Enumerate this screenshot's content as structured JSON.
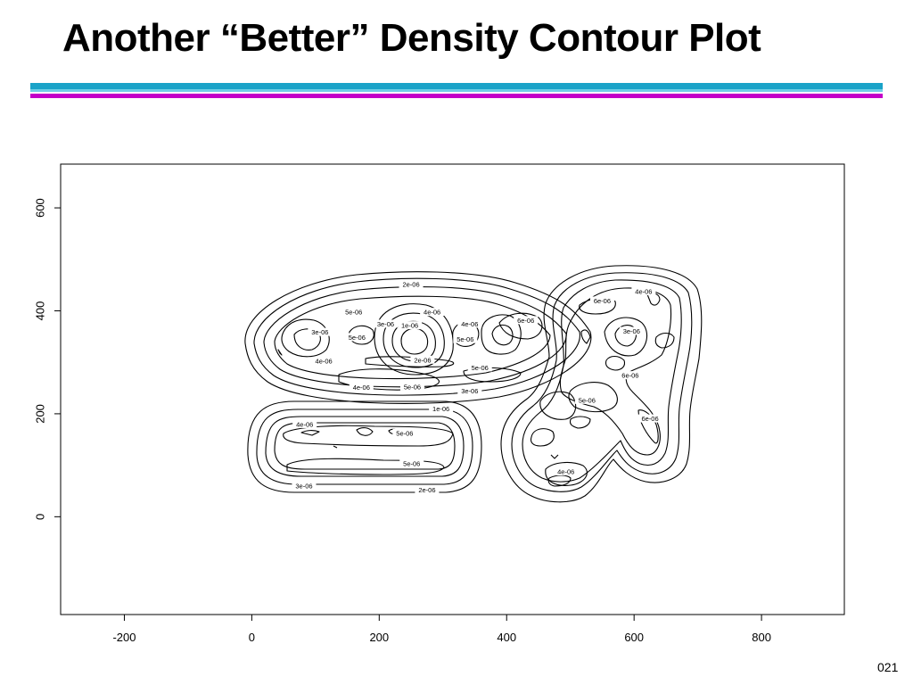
{
  "slide": {
    "title": "Another “Better” Density Contour Plot",
    "page_number": "021",
    "rule_colors": [
      "#1aa3c8",
      "#6fd0e6",
      "#c400c8"
    ]
  },
  "chart_data": {
    "type": "contour",
    "title": "",
    "xlabel": "",
    "ylabel": "",
    "xlim": [
      -300,
      930
    ],
    "ylim": [
      -190,
      685
    ],
    "x_ticks": [
      {
        "value": -200,
        "label": "-200"
      },
      {
        "value": 0,
        "label": "0"
      },
      {
        "value": 200,
        "label": "200"
      },
      {
        "value": 400,
        "label": "400"
      },
      {
        "value": 600,
        "label": "600"
      },
      {
        "value": 800,
        "label": "800"
      }
    ],
    "y_ticks": [
      {
        "value": 0,
        "label": "0"
      },
      {
        "value": 200,
        "label": "200"
      },
      {
        "value": 400,
        "label": "400"
      },
      {
        "value": 600,
        "label": "600"
      }
    ],
    "grid": false,
    "line_color": "#000000",
    "contour_levels": [
      "1e-06",
      "2e-06",
      "3e-06",
      "4e-06",
      "5e-06",
      "6e-06"
    ],
    "contour_labels": [
      {
        "x": 250,
        "y": 452,
        "text": "2e-06"
      },
      {
        "x": 160,
        "y": 398,
        "text": "5e-06"
      },
      {
        "x": 107,
        "y": 359,
        "text": "3e-06"
      },
      {
        "x": 165,
        "y": 349,
        "text": "5e-06"
      },
      {
        "x": 113,
        "y": 303,
        "text": "4e-06"
      },
      {
        "x": 210,
        "y": 375,
        "text": "3e-06"
      },
      {
        "x": 248,
        "y": 372,
        "text": "1e-06"
      },
      {
        "x": 283,
        "y": 398,
        "text": "4e-06"
      },
      {
        "x": 268,
        "y": 305,
        "text": "2e-06"
      },
      {
        "x": 342,
        "y": 375,
        "text": "4e-06"
      },
      {
        "x": 335,
        "y": 345,
        "text": "5e-06"
      },
      {
        "x": 358,
        "y": 290,
        "text": "5e-06"
      },
      {
        "x": 430,
        "y": 382,
        "text": "6e-06"
      },
      {
        "x": 172,
        "y": 252,
        "text": "4e-06"
      },
      {
        "x": 252,
        "y": 253,
        "text": "5e-06"
      },
      {
        "x": 342,
        "y": 245,
        "text": "3e-06"
      },
      {
        "x": 297,
        "y": 210,
        "text": "1e-06"
      },
      {
        "x": 83,
        "y": 180,
        "text": "4e-06"
      },
      {
        "x": 240,
        "y": 163,
        "text": "5e-06"
      },
      {
        "x": 251,
        "y": 104,
        "text": "5e-06"
      },
      {
        "x": 82,
        "y": 60,
        "text": "3e-06"
      },
      {
        "x": 275,
        "y": 53,
        "text": "2e-06"
      },
      {
        "x": 550,
        "y": 420,
        "text": "6e-06"
      },
      {
        "x": 615,
        "y": 438,
        "text": "4e-06"
      },
      {
        "x": 596,
        "y": 361,
        "text": "3e-06"
      },
      {
        "x": 594,
        "y": 275,
        "text": "6e-06"
      },
      {
        "x": 526,
        "y": 227,
        "text": "5e-06"
      },
      {
        "x": 625,
        "y": 191,
        "text": "6e-06"
      },
      {
        "x": 493,
        "y": 88,
        "text": "4e-06"
      }
    ]
  }
}
